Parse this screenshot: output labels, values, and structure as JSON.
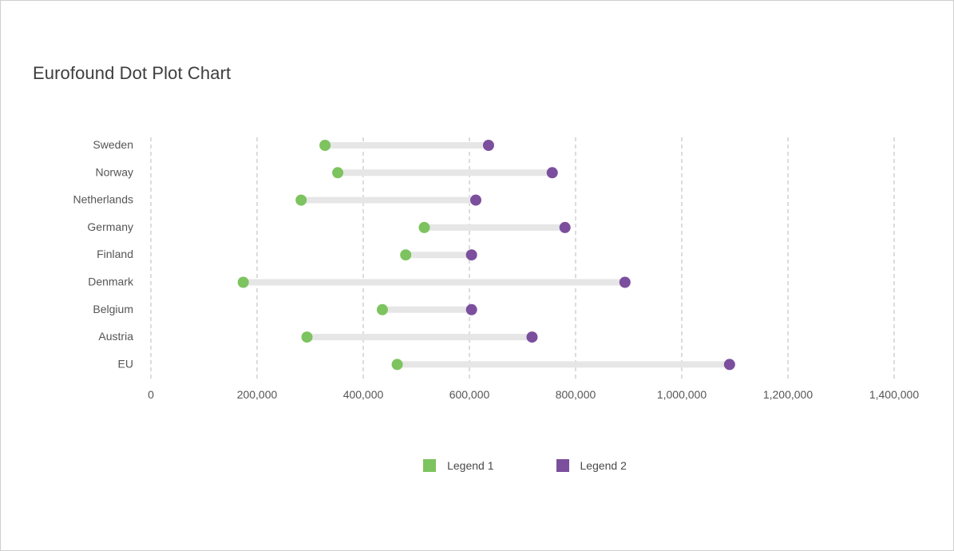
{
  "chart_data": {
    "type": "dot-plot",
    "title": "Eurofound Dot Plot Chart",
    "categories": [
      "Sweden",
      "Norway",
      "Netherlands",
      "Germany",
      "Finland",
      "Denmark",
      "Belgium",
      "Austria",
      "EU"
    ],
    "series": [
      {
        "name": "Legend 1",
        "color": "#7dc35f",
        "values": [
          328000,
          352000,
          283000,
          515000,
          480000,
          174000,
          436000,
          294000,
          464000
        ]
      },
      {
        "name": "Legend 2",
        "color": "#7b4f9d",
        "values": [
          636000,
          756000,
          612000,
          780000,
          604000,
          893000,
          604000,
          718000,
          1090000
        ]
      }
    ],
    "xlim": [
      0,
      1400000
    ],
    "x_ticks": [
      0,
      200000,
      400000,
      600000,
      800000,
      1000000,
      1200000,
      1400000
    ],
    "x_tick_labels": [
      "0",
      "200,000",
      "400,000",
      "600,000",
      "800,000",
      "1,000,000",
      "1,200,000",
      "1,400,000"
    ],
    "grid": "vertical-dashed",
    "connector_color": "#e6e6e6",
    "legend_position": "bottom-center"
  }
}
